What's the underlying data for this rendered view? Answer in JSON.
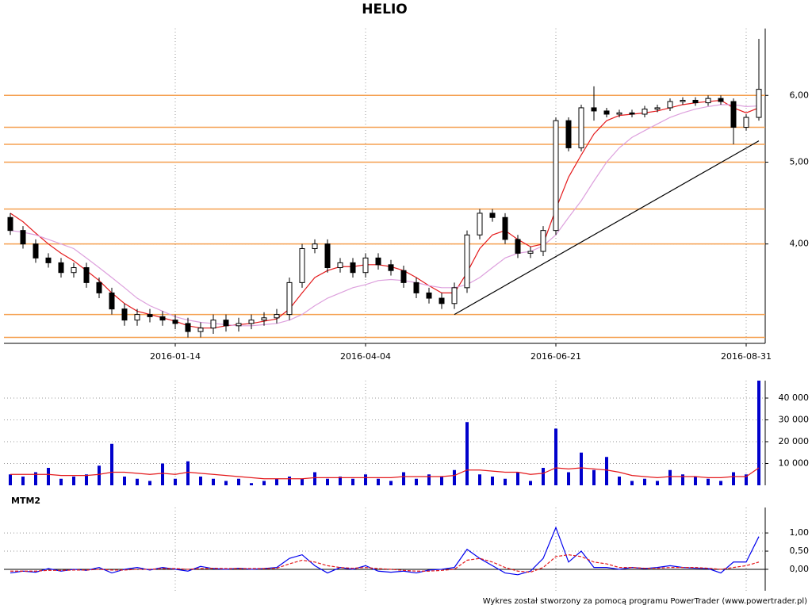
{
  "chart_data": [
    {
      "type": "candlestick",
      "title": "HELIO",
      "log_scale": true,
      "grid": true,
      "categories": [
        null,
        null,
        null,
        null,
        null,
        null,
        null,
        null,
        null,
        null,
        null,
        null,
        null,
        "2016-01-14",
        null,
        null,
        null,
        null,
        null,
        null,
        null,
        null,
        null,
        null,
        null,
        null,
        null,
        null,
        "2016-04-04",
        null,
        null,
        null,
        null,
        null,
        null,
        null,
        null,
        null,
        null,
        null,
        null,
        null,
        null,
        "2016-06-21",
        null,
        null,
        null,
        null,
        null,
        null,
        null,
        null,
        null,
        null,
        null,
        null,
        null,
        null,
        "2016-08-31",
        null
      ],
      "open": [
        4.3,
        4.15,
        4.0,
        3.85,
        3.8,
        3.7,
        3.75,
        3.6,
        3.5,
        3.35,
        3.25,
        3.3,
        3.28,
        3.25,
        3.22,
        3.15,
        3.18,
        3.25,
        3.2,
        3.22,
        3.25,
        3.27,
        3.3,
        3.6,
        3.95,
        4.0,
        3.75,
        3.8,
        3.7,
        3.85,
        3.78,
        3.72,
        3.6,
        3.5,
        3.45,
        3.4,
        3.55,
        4.1,
        4.35,
        4.3,
        4.05,
        3.9,
        3.92,
        4.15,
        5.6,
        5.2,
        5.8,
        5.75,
        5.7,
        5.72,
        5.7,
        5.78,
        5.8,
        5.9,
        5.92,
        5.88,
        5.95,
        5.9,
        5.5,
        5.65
      ],
      "high": [
        4.35,
        4.2,
        4.05,
        3.9,
        3.85,
        3.8,
        3.8,
        3.65,
        3.55,
        3.4,
        3.35,
        3.35,
        3.33,
        3.3,
        3.27,
        3.23,
        3.3,
        3.3,
        3.27,
        3.3,
        3.32,
        3.35,
        3.65,
        4.0,
        4.05,
        4.05,
        3.85,
        3.85,
        3.9,
        3.9,
        3.83,
        3.77,
        3.65,
        3.55,
        3.5,
        3.6,
        4.15,
        4.4,
        4.4,
        4.35,
        4.1,
        3.97,
        4.2,
        5.65,
        5.65,
        5.85,
        6.15,
        5.8,
        5.77,
        5.77,
        5.83,
        5.85,
        5.95,
        5.97,
        5.97,
        6.0,
        6.0,
        5.95,
        5.7,
        7.0
      ],
      "low": [
        4.1,
        3.95,
        3.8,
        3.75,
        3.65,
        3.65,
        3.55,
        3.45,
        3.3,
        3.2,
        3.2,
        3.23,
        3.2,
        3.17,
        3.1,
        3.1,
        3.13,
        3.15,
        3.15,
        3.17,
        3.2,
        3.22,
        3.25,
        3.55,
        3.9,
        3.7,
        3.7,
        3.65,
        3.65,
        3.73,
        3.67,
        3.55,
        3.45,
        3.4,
        3.35,
        3.35,
        3.5,
        4.05,
        4.25,
        4.0,
        3.85,
        3.85,
        3.87,
        4.1,
        5.15,
        5.15,
        5.6,
        5.65,
        5.65,
        5.65,
        5.65,
        5.73,
        5.75,
        5.85,
        5.83,
        5.83,
        5.85,
        5.25,
        5.45,
        5.6
      ],
      "close": [
        4.15,
        4.0,
        3.85,
        3.8,
        3.7,
        3.75,
        3.6,
        3.5,
        3.35,
        3.25,
        3.3,
        3.28,
        3.25,
        3.22,
        3.15,
        3.18,
        3.25,
        3.2,
        3.22,
        3.25,
        3.27,
        3.3,
        3.6,
        3.95,
        4.0,
        3.75,
        3.8,
        3.7,
        3.85,
        3.78,
        3.72,
        3.6,
        3.5,
        3.45,
        3.4,
        3.55,
        4.1,
        4.35,
        4.3,
        4.05,
        3.9,
        3.92,
        4.15,
        5.6,
        5.2,
        5.8,
        5.75,
        5.7,
        5.72,
        5.7,
        5.78,
        5.8,
        5.9,
        5.92,
        5.88,
        5.95,
        5.9,
        5.5,
        5.65,
        6.1
      ],
      "overlays": [
        {
          "color": "#e41a1c",
          "values": [
            4.35,
            4.25,
            4.12,
            4.0,
            3.9,
            3.82,
            3.72,
            3.62,
            3.5,
            3.4,
            3.33,
            3.3,
            3.27,
            3.24,
            3.2,
            3.18,
            3.18,
            3.2,
            3.21,
            3.22,
            3.24,
            3.26,
            3.35,
            3.5,
            3.65,
            3.72,
            3.76,
            3.76,
            3.78,
            3.78,
            3.76,
            3.72,
            3.65,
            3.57,
            3.5,
            3.5,
            3.7,
            3.95,
            4.1,
            4.15,
            4.05,
            3.97,
            4.0,
            4.4,
            4.8,
            5.1,
            5.4,
            5.6,
            5.68,
            5.7,
            5.72,
            5.75,
            5.8,
            5.85,
            5.88,
            5.9,
            5.92,
            5.8,
            5.72,
            5.8
          ]
        },
        {
          "color": "#dda0dd",
          "values": [
            4.15,
            4.13,
            4.1,
            4.05,
            4.0,
            3.95,
            3.85,
            3.75,
            3.65,
            3.55,
            3.45,
            3.38,
            3.33,
            3.28,
            3.25,
            3.23,
            3.22,
            3.21,
            3.2,
            3.2,
            3.21,
            3.22,
            3.25,
            3.3,
            3.38,
            3.45,
            3.5,
            3.55,
            3.58,
            3.62,
            3.63,
            3.62,
            3.6,
            3.57,
            3.55,
            3.55,
            3.58,
            3.65,
            3.75,
            3.85,
            3.9,
            3.92,
            3.98,
            4.1,
            4.3,
            4.5,
            4.75,
            5.0,
            5.2,
            5.35,
            5.45,
            5.55,
            5.65,
            5.72,
            5.78,
            5.82,
            5.85,
            5.85,
            5.82,
            5.83
          ]
        }
      ],
      "levels": [
        6.0,
        5.5,
        5.25,
        5.0,
        4.4,
        4.0,
        3.3,
        3.1
      ],
      "level_color": "#f5a050",
      "trendline": {
        "x": [
          35,
          59
        ],
        "values": [
          3.3,
          5.3
        ],
        "color": "#000000"
      },
      "ylim": [
        3.05,
        7.2
      ],
      "yticks": [
        {
          "value": 4,
          "label": "4,00"
        },
        {
          "value": 5,
          "label": "5,00"
        },
        {
          "value": 6,
          "label": "6,00"
        }
      ]
    },
    {
      "type": "bar",
      "color": "#0000cc",
      "grid": true,
      "values": [
        5000,
        4000,
        6000,
        8000,
        3000,
        4000,
        5000,
        9000,
        19000,
        4000,
        3000,
        2000,
        10000,
        3000,
        11000,
        4000,
        3000,
        2000,
        3000,
        1000,
        2000,
        3000,
        4000,
        3000,
        6000,
        3000,
        4000,
        3000,
        5000,
        3000,
        2000,
        6000,
        3000,
        5000,
        4000,
        7000,
        29000,
        5000,
        4000,
        3000,
        6000,
        2000,
        8000,
        26000,
        6000,
        15000,
        7000,
        13000,
        4000,
        2000,
        3000,
        2000,
        7000,
        5000,
        4000,
        3000,
        2000,
        6000,
        5000,
        48000
      ],
      "overlays": [
        {
          "color": "#e41a1c",
          "values": [
            5000,
            5000,
            5000,
            5000,
            4500,
            4500,
            4500,
            5000,
            6000,
            6000,
            5500,
            5000,
            5500,
            5000,
            6000,
            5500,
            5000,
            4500,
            4000,
            3500,
            3000,
            3000,
            3000,
            3000,
            3500,
            3500,
            3500,
            3500,
            3500,
            3500,
            3500,
            4000,
            4000,
            4000,
            4000,
            4500,
            7000,
            7000,
            6500,
            6000,
            6000,
            5000,
            5500,
            8000,
            7500,
            8000,
            7500,
            7000,
            6000,
            4500,
            4000,
            3500,
            4000,
            4000,
            4000,
            3500,
            3500,
            4000,
            4000,
            8000
          ]
        }
      ],
      "ylim": [
        0,
        48000
      ],
      "yticks": [
        {
          "value": 10000,
          "label": "10 000"
        },
        {
          "value": 20000,
          "label": "20 000"
        },
        {
          "value": 30000,
          "label": "30 000"
        },
        {
          "value": 40000,
          "label": "40 000"
        }
      ]
    },
    {
      "type": "line",
      "title": "MTM2",
      "grid": true,
      "series": [
        {
          "color": "#0000ee",
          "values": [
            -0.1,
            -0.05,
            -0.08,
            0.02,
            -0.05,
            0.0,
            -0.03,
            0.05,
            -0.1,
            0.0,
            0.05,
            -0.02,
            0.05,
            0.0,
            -0.05,
            0.08,
            0.02,
            0.0,
            0.03,
            0.0,
            0.02,
            0.05,
            0.3,
            0.4,
            0.1,
            -0.1,
            0.05,
            0.0,
            0.1,
            -0.05,
            -0.08,
            -0.05,
            -0.1,
            -0.02,
            0.0,
            0.05,
            0.55,
            0.3,
            0.1,
            -0.1,
            -0.15,
            -0.05,
            0.3,
            1.15,
            0.2,
            0.5,
            0.05,
            0.05,
            0.0,
            0.05,
            0.02,
            0.05,
            0.1,
            0.05,
            0.03,
            0.02,
            -0.1,
            0.2,
            0.2,
            0.9
          ]
        },
        {
          "color": "#e41a1c",
          "dash": true,
          "values": [
            -0.05,
            -0.05,
            -0.05,
            -0.03,
            -0.03,
            -0.02,
            -0.02,
            0.0,
            -0.02,
            -0.02,
            0.0,
            0.0,
            0.02,
            0.02,
            0.0,
            0.02,
            0.03,
            0.02,
            0.02,
            0.02,
            0.02,
            0.03,
            0.15,
            0.25,
            0.2,
            0.1,
            0.05,
            0.03,
            0.05,
            0.02,
            0.0,
            -0.03,
            -0.05,
            -0.05,
            -0.03,
            0.0,
            0.25,
            0.3,
            0.2,
            0.05,
            -0.05,
            -0.08,
            0.05,
            0.35,
            0.4,
            0.35,
            0.2,
            0.15,
            0.05,
            0.05,
            0.03,
            0.03,
            0.05,
            0.05,
            0.05,
            0.03,
            0.0,
            0.05,
            0.1,
            0.2
          ]
        }
      ],
      "ylim": [
        -0.59,
        1.7
      ],
      "yticks": [
        {
          "value": 0,
          "label": "0,00"
        },
        {
          "value": 0.5,
          "label": "0,50"
        },
        {
          "value": 1,
          "label": "1,00"
        }
      ]
    }
  ],
  "footer": "Wykres został stworzony za pomocą programu PowerTrader (www.powertrader.pl)"
}
